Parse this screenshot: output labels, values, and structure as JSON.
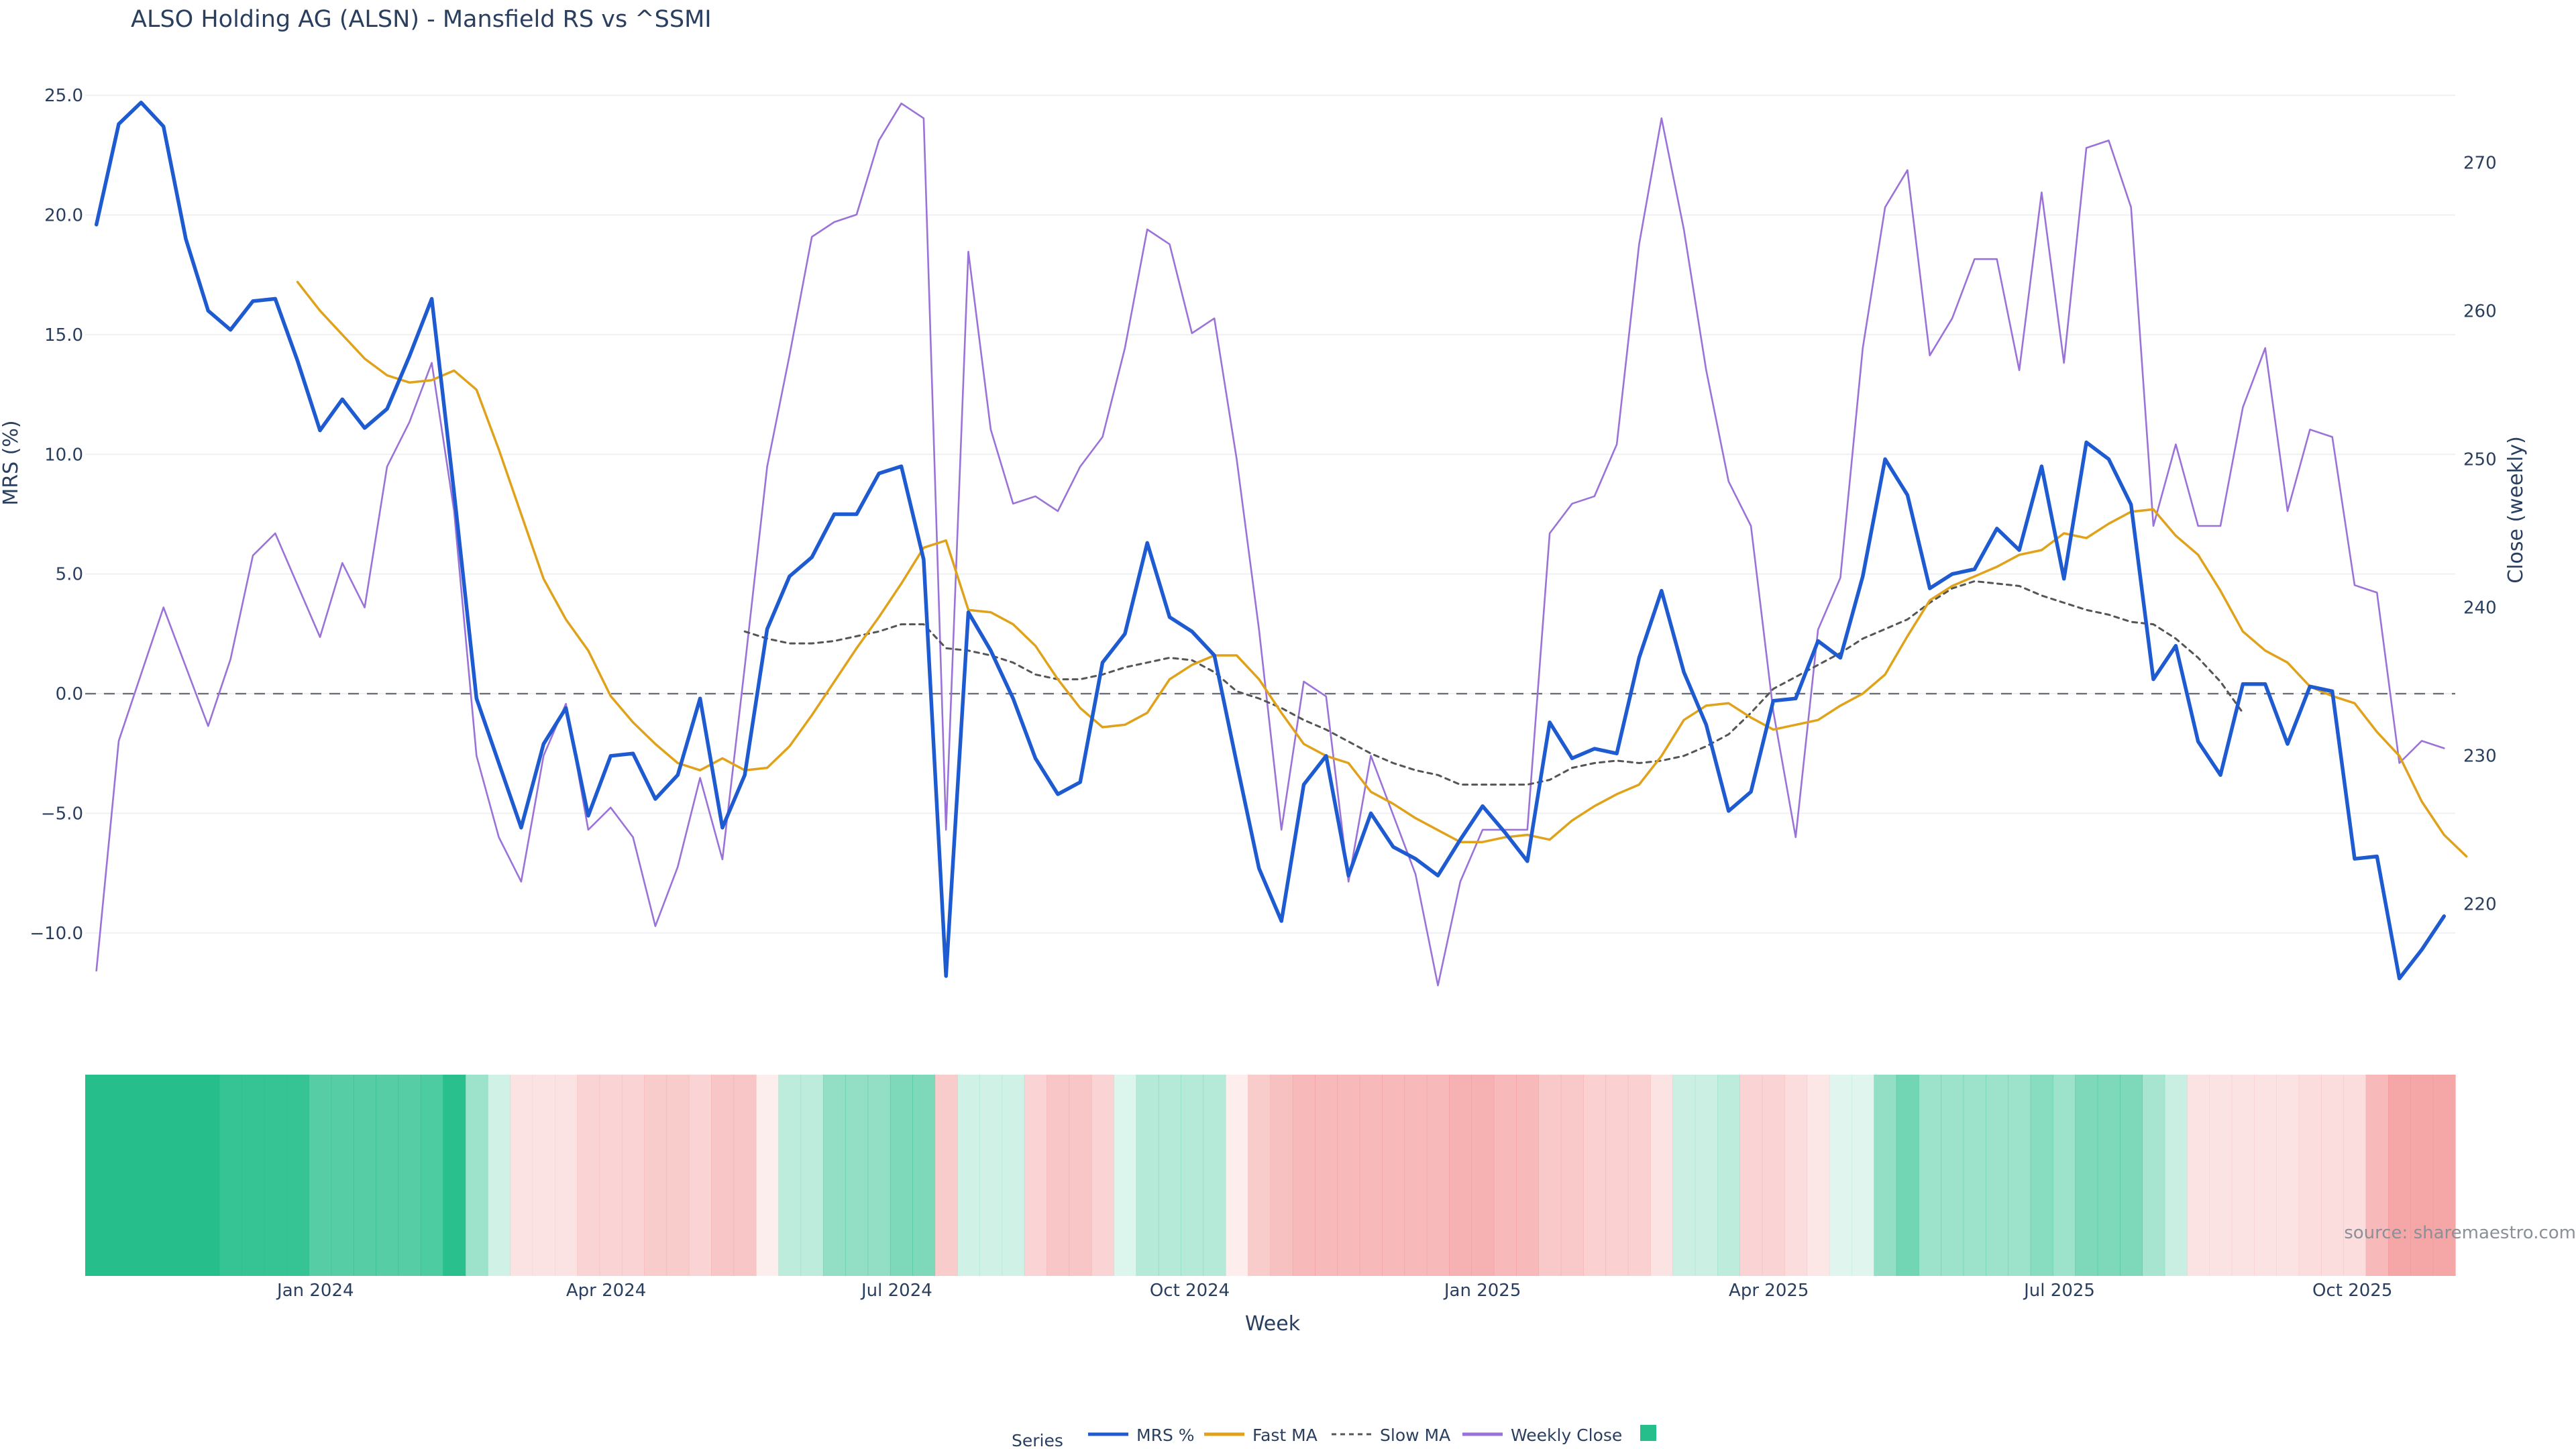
{
  "chart_data": {
    "type": "line",
    "title": "ALSO Holding AG (ALSN) - Mansfield RS vs ^SSMI",
    "xlabel": "Week",
    "ylabel_left": "MRS (%)",
    "ylabel_right": "Close (weekly)",
    "ylim_left": [
      -12.5,
      25.9
    ],
    "ylim_right": [
      214,
      276
    ],
    "left_ticks": [
      {
        "v": 25,
        "label": "25.0"
      },
      {
        "v": 20,
        "label": "20.0"
      },
      {
        "v": 15,
        "label": "15.0"
      },
      {
        "v": 10,
        "label": "10.0"
      },
      {
        "v": 5,
        "label": "5.0"
      },
      {
        "v": 0,
        "label": "0.0"
      },
      {
        "v": -5,
        "label": "−5.0"
      },
      {
        "v": -10,
        "label": "−10.0"
      }
    ],
    "right_ticks": [
      {
        "v": 270,
        "label": "270"
      },
      {
        "v": 260,
        "label": "260"
      },
      {
        "v": 250,
        "label": "250"
      },
      {
        "v": 240,
        "label": "240"
      },
      {
        "v": 230,
        "label": "230"
      },
      {
        "v": 220,
        "label": "220"
      }
    ],
    "x_ticks": [
      {
        "week": 9.8,
        "label": "Jan 2024"
      },
      {
        "week": 22.8,
        "label": "Apr 2024"
      },
      {
        "week": 35.8,
        "label": "Jul 2024"
      },
      {
        "week": 48.9,
        "label": "Oct 2024"
      },
      {
        "week": 62.0,
        "label": "Jan 2025"
      },
      {
        "week": 74.8,
        "label": "Apr 2025"
      },
      {
        "week": 87.8,
        "label": "Jul 2025"
      },
      {
        "week": 100.9,
        "label": "Oct 2025"
      }
    ],
    "x_range": [
      -0.5,
      105.5
    ],
    "series": [
      {
        "name": "MRS %",
        "color": "#1f5bd0",
        "style": "solid",
        "start": 0,
        "values": [
          19.6,
          23.8,
          24.7,
          23.7,
          19.0,
          16.0,
          15.2,
          16.4,
          16.5,
          13.9,
          11.0,
          12.3,
          11.1,
          11.9,
          14.1,
          16.5,
          8.4,
          -0.2,
          -2.9,
          -5.6,
          -2.1,
          -0.6,
          -5.1,
          -2.6,
          -2.5,
          -4.4,
          -3.4,
          -0.2,
          -5.6,
          -3.4,
          2.7,
          4.9,
          5.7,
          7.5,
          7.5,
          9.2,
          9.5,
          5.6,
          -11.8,
          3.4,
          1.8,
          -0.2,
          -2.7,
          -4.2,
          -3.7,
          1.3,
          2.5,
          6.3,
          3.2,
          2.6,
          1.6,
          -2.9,
          -7.3,
          -9.5,
          -3.8,
          -2.6,
          -7.6,
          -5.0,
          -6.4,
          -6.9,
          -7.6,
          -6.1,
          -4.7,
          -5.8,
          -7.0,
          -1.2,
          -2.7,
          -2.3,
          -2.5,
          1.5,
          4.3,
          0.9,
          -1.3,
          -4.9,
          -4.1,
          -0.3,
          -0.2,
          2.2,
          1.5,
          4.9,
          9.8,
          8.3,
          4.4,
          5.0,
          5.2,
          6.9,
          6.0,
          9.5,
          4.8,
          10.5,
          9.8,
          7.9,
          0.6,
          2.0,
          -2.0,
          -3.4,
          0.4,
          0.4,
          -2.1,
          0.3,
          0.1,
          -6.9,
          -6.8,
          -11.9,
          -10.7,
          -9.3
        ]
      },
      {
        "name": "Fast MA",
        "color": "#e0a21a",
        "style": "solid",
        "start": 9,
        "values": [
          17.2,
          16.0,
          15.0,
          14.0,
          13.3,
          13.0,
          13.1,
          13.5,
          12.7,
          10.2,
          7.5,
          4.8,
          3.1,
          1.8,
          -0.1,
          -1.2,
          -2.1,
          -2.9,
          -3.2,
          -2.7,
          -3.2,
          -3.1,
          -2.2,
          -0.9,
          0.5,
          1.9,
          3.2,
          4.6,
          6.1,
          6.4,
          3.5,
          3.4,
          2.9,
          2.0,
          0.6,
          -0.6,
          -1.4,
          -1.3,
          -0.8,
          0.6,
          1.2,
          1.6,
          1.6,
          0.6,
          -0.8,
          -2.1,
          -2.6,
          -2.9,
          -4.1,
          -4.6,
          -5.2,
          -5.7,
          -6.2,
          -6.2,
          -6.0,
          -5.9,
          -6.1,
          -5.3,
          -4.7,
          -4.2,
          -3.8,
          -2.6,
          -1.1,
          -0.5,
          -0.4,
          -1.0,
          -1.5,
          -1.3,
          -1.1,
          -0.5,
          0.0,
          0.8,
          2.4,
          3.9,
          4.5,
          4.9,
          5.3,
          5.8,
          6.0,
          6.7,
          6.5,
          7.1,
          7.6,
          7.7,
          6.6,
          5.8,
          4.3,
          2.6,
          1.8,
          1.3,
          0.3,
          -0.1,
          -0.4,
          -1.6,
          -2.6,
          -4.5,
          -5.9,
          -6.8
        ]
      },
      {
        "name": "Slow MA",
        "color": "#555555",
        "style": "dash",
        "start": 29,
        "values": [
          2.6,
          2.3,
          2.1,
          2.1,
          2.2,
          2.4,
          2.6,
          2.9,
          2.9,
          1.9,
          1.8,
          1.6,
          1.3,
          0.8,
          0.6,
          0.6,
          0.8,
          1.1,
          1.3,
          1.5,
          1.4,
          0.9,
          0.1,
          -0.2,
          -0.6,
          -1.1,
          -1.5,
          -2.0,
          -2.5,
          -2.9,
          -3.2,
          -3.4,
          -3.8,
          -3.8,
          -3.8,
          -3.8,
          -3.6,
          -3.1,
          -2.9,
          -2.8,
          -2.9,
          -2.8,
          -2.6,
          -2.2,
          -1.7,
          -0.8,
          0.2,
          0.7,
          1.2,
          1.7,
          2.3,
          2.7,
          3.1,
          3.8,
          4.4,
          4.7,
          4.6,
          4.5,
          4.1,
          3.8,
          3.5,
          3.3,
          3.0,
          2.9,
          2.3,
          1.5,
          0.5,
          -0.8
        ]
      },
      {
        "name": "Weekly Close",
        "color": "#9b72d8",
        "style": "solid",
        "start": 0,
        "axis": "right",
        "values": [
          215.5,
          231.0,
          235.5,
          240.0,
          236.0,
          232.0,
          236.5,
          243.5,
          245.0,
          241.5,
          238.0,
          243.0,
          240.0,
          249.5,
          252.5,
          256.5,
          246.5,
          230.0,
          224.5,
          221.5,
          230.0,
          233.5,
          225.0,
          226.5,
          224.5,
          218.5,
          222.5,
          228.5,
          223.0,
          236.0,
          249.5,
          257.0,
          265.0,
          266.0,
          266.5,
          271.5,
          274.0,
          273.0,
          225.0,
          264.0,
          252.0,
          247.0,
          247.5,
          246.5,
          249.5,
          251.5,
          257.5,
          265.5,
          264.5,
          258.5,
          259.5,
          250.0,
          238.5,
          225.0,
          235.0,
          234.0,
          221.5,
          230.0,
          226.0,
          222.0,
          214.5,
          221.5,
          225.0,
          225.0,
          225.0,
          245.0,
          247.0,
          247.5,
          251.0,
          264.5,
          273.0,
          265.5,
          256.0,
          248.5,
          245.5,
          233.0,
          224.5,
          238.5,
          242.0,
          257.5,
          267.0,
          269.5,
          257.0,
          259.5,
          263.5,
          263.5,
          256.0,
          268.0,
          256.5,
          271.0,
          271.5,
          267.0,
          245.5,
          251.0,
          245.5,
          245.5,
          253.5,
          257.5,
          246.5,
          252.0,
          251.5,
          241.5,
          241.0,
          229.5,
          231.0,
          230.5
        ]
      }
    ],
    "heat_strip": {
      "weeks": [
        0,
        105
      ],
      "pos_color": "#26bf8c",
      "neg_color": "#f28e8e",
      "intensity": [
        1.0,
        1.0,
        1.0,
        1.0,
        1.0,
        1.0,
        0.92,
        0.92,
        0.92,
        0.92,
        0.78,
        0.78,
        0.78,
        0.78,
        0.78,
        0.82,
        0.98,
        0.45,
        0.22,
        -0.25,
        -0.25,
        -0.25,
        -0.38,
        -0.38,
        -0.38,
        -0.45,
        -0.45,
        -0.38,
        -0.5,
        -0.5,
        -0.15,
        0.3,
        0.3,
        0.5,
        0.5,
        0.5,
        0.6,
        0.6,
        -0.45,
        0.22,
        0.22,
        0.22,
        -0.38,
        -0.5,
        -0.5,
        -0.38,
        0.16,
        0.34,
        0.34,
        0.34,
        0.34,
        -0.16,
        -0.45,
        -0.55,
        -0.62,
        -0.62,
        -0.62,
        -0.62,
        -0.62,
        -0.62,
        -0.62,
        -0.68,
        -0.68,
        -0.62,
        -0.62,
        -0.48,
        -0.48,
        -0.42,
        -0.42,
        -0.42,
        -0.25,
        0.24,
        0.24,
        0.3,
        -0.38,
        -0.38,
        -0.3,
        -0.22,
        0.15,
        0.15,
        0.5,
        0.65,
        0.45,
        0.45,
        0.45,
        0.45,
        0.45,
        0.55,
        0.45,
        0.6,
        0.6,
        0.6,
        0.4,
        0.25,
        -0.25,
        -0.25,
        -0.25,
        -0.25,
        -0.25,
        -0.3,
        -0.3,
        -0.3,
        -0.62,
        -0.78,
        -0.78,
        -0.78
      ]
    },
    "source": "source: sharemaestro.com",
    "legend": {
      "title": "Series",
      "position": "bottom-center",
      "items": [
        {
          "label": "MRS %",
          "color": "#1f5bd0",
          "style": "solid"
        },
        {
          "label": "Fast MA",
          "color": "#e0a21a",
          "style": "solid"
        },
        {
          "label": "Slow MA",
          "color": "#555555",
          "style": "dash"
        },
        {
          "label": "Weekly Close",
          "color": "#9b72d8",
          "style": "solid"
        },
        {
          "label": "",
          "color": "#26bf8c",
          "style": "box"
        }
      ]
    }
  }
}
